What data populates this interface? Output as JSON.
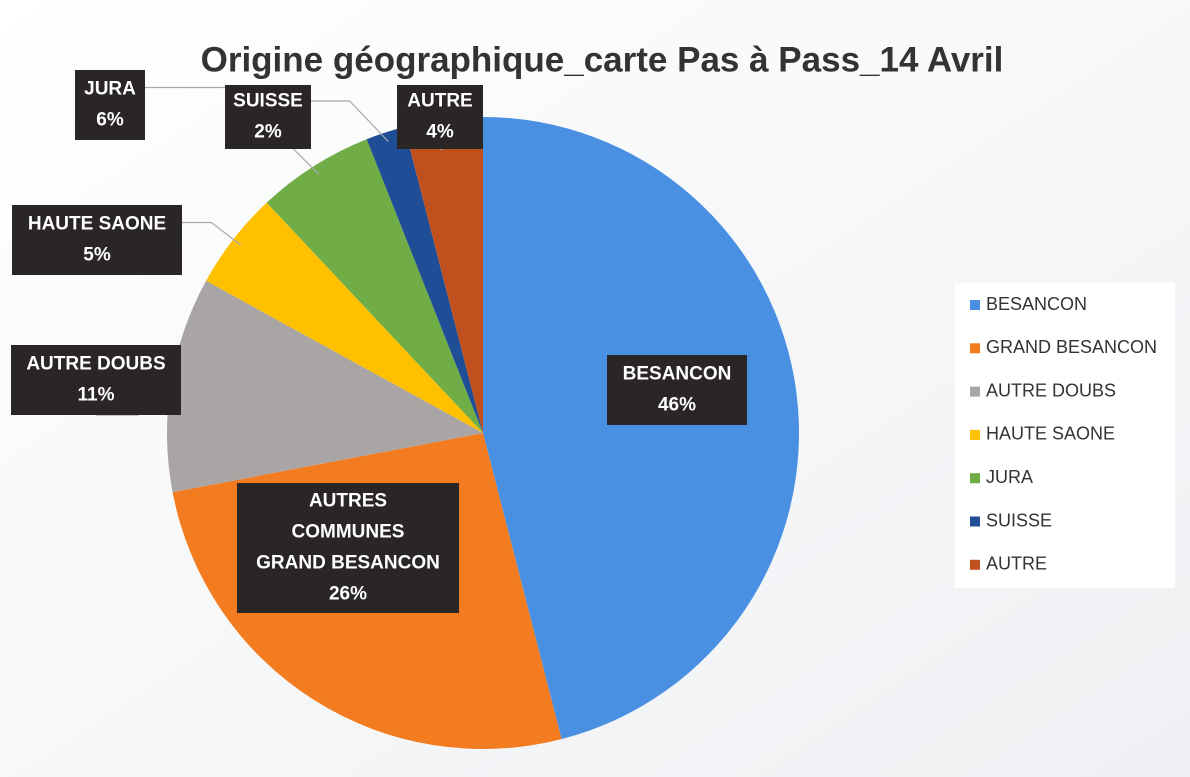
{
  "chart_data": {
    "type": "pie",
    "title": "Origine géographique_carte Pas à Pass_14 Avril",
    "categories": [
      "BESANCON",
      "GRAND BESANCON",
      "AUTRE DOUBS",
      "HAUTE SAONE",
      "JURA",
      "SUISSE",
      "AUTRE"
    ],
    "labels": [
      [
        "BESANCON"
      ],
      [
        "AUTRES",
        "COMMUNES",
        "GRAND BESANCON"
      ],
      [
        "AUTRE DOUBS"
      ],
      [
        "HAUTE SAONE"
      ],
      [
        "JURA"
      ],
      [
        "SUISSE"
      ],
      [
        "AUTRE"
      ]
    ],
    "values": [
      46,
      26,
      11,
      5,
      6,
      2,
      4
    ],
    "value_labels": [
      "46%",
      "26%",
      "11%",
      "5%",
      "6%",
      "2%",
      "4%"
    ],
    "colors": [
      "#4a90e2",
      "#f47c20",
      "#aaa5a5",
      "#ffc000",
      "#70ad47",
      "#1f4e96",
      "#c0501e"
    ],
    "legend": "right"
  }
}
